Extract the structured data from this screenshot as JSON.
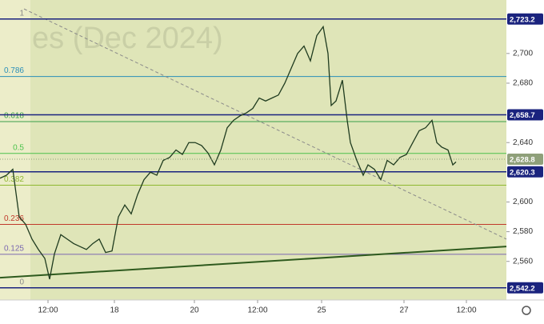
{
  "chart_data": {
    "type": "line",
    "watermark": "es (Dec 2024)",
    "x": [
      0,
      8,
      16,
      24,
      32,
      40,
      48,
      56,
      62,
      68,
      76,
      84,
      92,
      100,
      108,
      116,
      124,
      132,
      140,
      148,
      156,
      164,
      172,
      180,
      188,
      196,
      204,
      212,
      220,
      228,
      236,
      244,
      252,
      260,
      268,
      276,
      284,
      292,
      300,
      308,
      316,
      324,
      332,
      340,
      348,
      356,
      364,
      372,
      380,
      388,
      396,
      404,
      410,
      414,
      420,
      428,
      434,
      438,
      446,
      454,
      460,
      468,
      476,
      484,
      492,
      500,
      508,
      516,
      524,
      532,
      540,
      546,
      552,
      560,
      566,
      570
    ],
    "series": [
      {
        "color": "#1f3b1f",
        "values": [
          2616,
          2618,
          2622,
          2590,
          2585,
          2575,
          2568,
          2562,
          2548,
          2565,
          2578,
          2575,
          2572,
          2570,
          2568,
          2572,
          2575,
          2566,
          2567,
          2590,
          2598,
          2592,
          2605,
          2615,
          2620,
          2618,
          2628,
          2630,
          2635,
          2632,
          2640,
          2640,
          2638,
          2633,
          2625,
          2635,
          2650,
          2655,
          2658,
          2660,
          2663,
          2670,
          2668,
          2670,
          2672,
          2680,
          2690,
          2700,
          2705,
          2695,
          2712,
          2718,
          2700,
          2665,
          2668,
          2682,
          2655,
          2640,
          2628,
          2618,
          2625,
          2622,
          2615,
          2628,
          2625,
          2630,
          2632,
          2640,
          2648,
          2650,
          2655,
          2640,
          2637,
          2635,
          2625,
          2627
        ]
      }
    ],
    "xlim": [
      0,
      633
    ],
    "xticks": [
      {
        "value": 60,
        "label": "12:00"
      },
      {
        "value": 143,
        "label": "18"
      },
      {
        "value": 243,
        "label": "20"
      },
      {
        "value": 322,
        "label": "12:00"
      },
      {
        "value": 402,
        "label": "25"
      },
      {
        "value": 505,
        "label": "27"
      },
      {
        "value": 583,
        "label": "12:00"
      }
    ],
    "ylim": [
      2534,
      2736
    ],
    "yticks": [
      {
        "value": 2560,
        "label": "2,560"
      },
      {
        "value": 2580,
        "label": "2,580"
      },
      {
        "value": 2600,
        "label": "2,600"
      },
      {
        "value": 2640,
        "label": "2,640"
      },
      {
        "value": 2680,
        "label": "2,680"
      },
      {
        "value": 2700,
        "label": "2,700"
      }
    ],
    "fib_levels": [
      {
        "ratio": 1,
        "price": 2723.2,
        "color": "#8a8a8a"
      },
      {
        "ratio": 0.786,
        "price": 2684.5,
        "color": "#2a8fb8"
      },
      {
        "ratio": 0.618,
        "price": 2654.1,
        "color": "#3aa04a"
      },
      {
        "ratio": 0.5,
        "price": 2632.7,
        "color": "#4cc24c"
      },
      {
        "ratio": 0.382,
        "price": 2611.3,
        "color": "#8fb830"
      },
      {
        "ratio": 0.236,
        "price": 2584.9,
        "color": "#c0392b"
      },
      {
        "ratio": 0.125,
        "price": 2564.8,
        "color": "#7b68b0"
      },
      {
        "ratio": 0,
        "price": 2542.2,
        "color": "#8a8a8a"
      }
    ],
    "price_lines": [
      {
        "value": 2723.2,
        "label": "2,723.2"
      },
      {
        "value": 2658.7,
        "label": "2,658.7"
      },
      {
        "value": 2620.3,
        "label": "2,620.3"
      },
      {
        "value": 2542.2,
        "label": "2,542.2"
      }
    ],
    "line_color": "#1a237e",
    "last_price": {
      "value": 2628.8,
      "label": "2,628.8",
      "color": "#8fa07a"
    },
    "trendline": {
      "x": [
        0,
        633
      ],
      "values": [
        2549,
        2570
      ],
      "color": "#2e5a1e"
    },
    "dashed_line": {
      "x": [
        30,
        633
      ],
      "values": [
        2730,
        2575
      ],
      "color": "#8a8a8a"
    }
  }
}
